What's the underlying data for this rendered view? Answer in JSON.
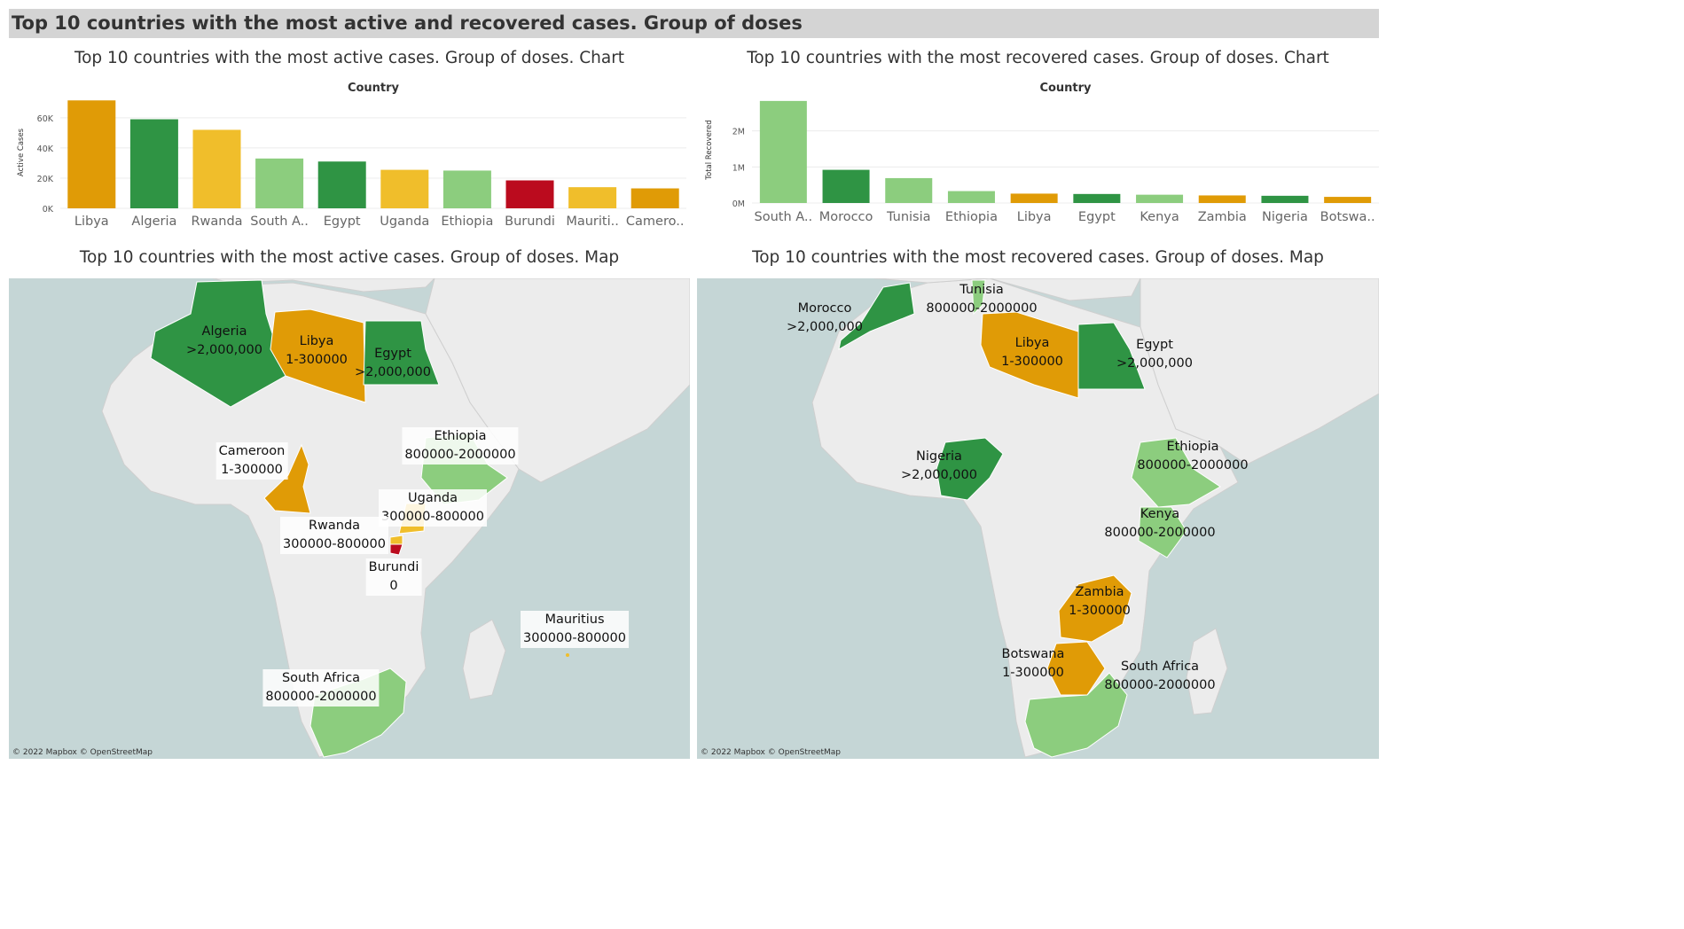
{
  "dashboard": {
    "title": "Top 10 countries with the most active and recovered cases. Group of doses"
  },
  "panels": {
    "active_chart_title": "Top 10 countries with the most active cases. Group of doses. Chart",
    "recovered_chart_title": "Top 10 countries with the most recovered cases. Group of doses. Chart",
    "active_map_title": "Top 10 countries with the most active cases. Group of doses. Map",
    "recovered_map_title": "Top 10 countries with the most recovered cases. Group of doses. Map",
    "map_attribution": "© 2022 Mapbox © OpenStreetMap"
  },
  "colors": {
    "gt_2000000": "#2f9444",
    "800000_2000000": "#8ccd7e",
    "300000_800000": "#f0be2b",
    "1_300000": "#e09b06",
    "0": "#bb0b1e",
    "map_land": "#ececec",
    "map_water": "#c5d6d6"
  },
  "chart_data": [
    {
      "type": "bar",
      "title": "Country",
      "xlabel": "Country",
      "ylabel": "Active Cases",
      "ylim": [
        0,
        74000
      ],
      "yticks": [
        0,
        20000,
        40000,
        60000
      ],
      "ytick_labels": [
        "0K",
        "20K",
        "40K",
        "60K"
      ],
      "categories": [
        "Libya",
        "Algeria",
        "Rwanda",
        "South A..",
        "Egypt",
        "Uganda",
        "Ethiopia",
        "Burundi",
        "Mauriti..",
        "Camero.."
      ],
      "values": [
        71500,
        59000,
        52000,
        33000,
        31000,
        25500,
        25000,
        18500,
        14000,
        13200
      ],
      "colors": [
        "#e09b06",
        "#2f9444",
        "#f0be2b",
        "#8ccd7e",
        "#2f9444",
        "#f0be2b",
        "#8ccd7e",
        "#bb0b1e",
        "#f0be2b",
        "#e09b06"
      ],
      "grid": true
    },
    {
      "type": "bar",
      "title": "Country",
      "xlabel": "Country",
      "ylabel": "Total Recovered",
      "ylim": [
        0,
        2950000
      ],
      "yticks": [
        0,
        1000000,
        2000000
      ],
      "ytick_labels": [
        "0M",
        "1M",
        "2M"
      ],
      "categories": [
        "South A..",
        "Morocco",
        "Tunisia",
        "Ethiopia",
        "Libya",
        "Egypt",
        "Kenya",
        "Zambia",
        "Nigeria",
        "Botswa.."
      ],
      "values": [
        2830000,
        920000,
        690000,
        330000,
        260000,
        250000,
        230000,
        210000,
        200000,
        170000
      ],
      "colors": [
        "#8ccd7e",
        "#2f9444",
        "#8ccd7e",
        "#8ccd7e",
        "#e09b06",
        "#2f9444",
        "#8ccd7e",
        "#e09b06",
        "#2f9444",
        "#e09b06"
      ],
      "grid": true
    }
  ],
  "active_map": {
    "labels": [
      {
        "name": "Algeria",
        "group": ">2,000,000"
      },
      {
        "name": "Libya",
        "group": "1-300000"
      },
      {
        "name": "Egypt",
        "group": ">2,000,000"
      },
      {
        "name": "Ethiopia",
        "group": "800000-2000000"
      },
      {
        "name": "Cameroon",
        "group": "1-300000"
      },
      {
        "name": "Uganda",
        "group": "300000-800000"
      },
      {
        "name": "Rwanda",
        "group": "300000-800000"
      },
      {
        "name": "Burundi",
        "group": "0"
      },
      {
        "name": "Mauritius",
        "group": "300000-800000"
      },
      {
        "name": "South Africa",
        "group": "800000-2000000"
      }
    ]
  },
  "recovered_map": {
    "labels": [
      {
        "name": "Tunisia",
        "group": "800000-2000000"
      },
      {
        "name": "Morocco",
        "group": ">2,000,000"
      },
      {
        "name": "Libya",
        "group": "1-300000"
      },
      {
        "name": "Egypt",
        "group": ">2,000,000"
      },
      {
        "name": "Nigeria",
        "group": ">2,000,000"
      },
      {
        "name": "Ethiopia",
        "group": "800000-2000000"
      },
      {
        "name": "Kenya",
        "group": "800000-2000000"
      },
      {
        "name": "Zambia",
        "group": "1-300000"
      },
      {
        "name": "Botswana",
        "group": "1-300000"
      },
      {
        "name": "South Africa",
        "group": "800000-2000000"
      }
    ]
  }
}
